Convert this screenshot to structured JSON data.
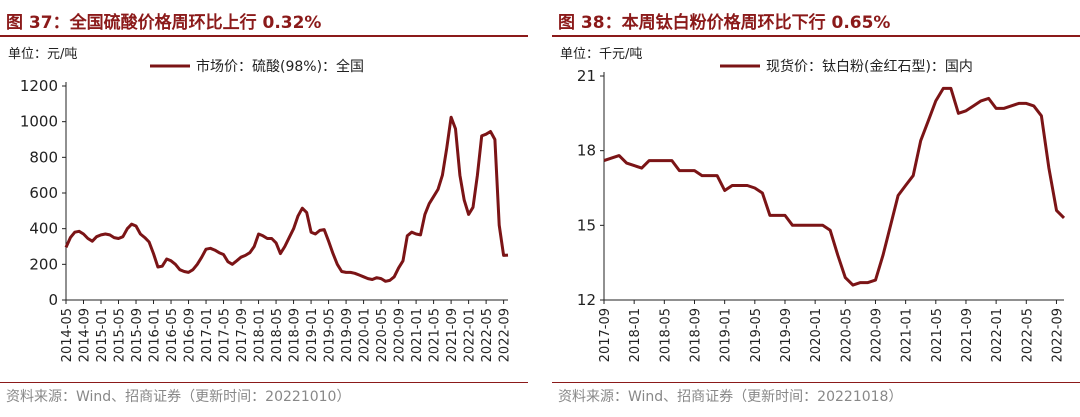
{
  "left": {
    "title": "图 37：全国硫酸价格周环比上行 0.32%",
    "source": "资料来源：Wind、招商证券（更新时间：20221010）"
  },
  "right": {
    "title": "图 38：本周钛白粉价格周环比下行 0.65%",
    "source": "资料来源：Wind、招商证券（更新时间：20221018）"
  },
  "colors": {
    "accent": "#8b1a1a",
    "line": "#7b1416",
    "axis": "#222222"
  },
  "chart_data": [
    {
      "type": "line",
      "title": "",
      "unit_label": "单位：元/吨",
      "xlabel": "",
      "ylabel": "",
      "ylim": [
        0,
        1200
      ],
      "yticks": [
        0,
        200,
        400,
        600,
        800,
        1000,
        1200
      ],
      "xlim": [
        "2014-05",
        "2022-10"
      ],
      "xticks": [
        "2014-05",
        "2014-09",
        "2015-01",
        "2015-05",
        "2015-09",
        "2016-01",
        "2016-05",
        "2016-09",
        "2017-01",
        "2017-05",
        "2017-09",
        "2018-01",
        "2018-05",
        "2018-09",
        "2019-01",
        "2019-05",
        "2019-09",
        "2020-01",
        "2020-05",
        "2020-09",
        "2021-01",
        "2021-05",
        "2021-09",
        "2022-01",
        "2022-05",
        "2022-09"
      ],
      "grid": false,
      "legend": "top",
      "series": [
        {
          "name": "市场价：硫酸(98%)：全国",
          "points": [
            [
              "2014-05",
              295
            ],
            [
              "2014-06",
              350
            ],
            [
              "2014-07",
              380
            ],
            [
              "2014-08",
              385
            ],
            [
              "2014-09",
              370
            ],
            [
              "2014-10",
              345
            ],
            [
              "2014-11",
              330
            ],
            [
              "2014-12",
              355
            ],
            [
              "2015-01",
              365
            ],
            [
              "2015-02",
              370
            ],
            [
              "2015-03",
              365
            ],
            [
              "2015-04",
              350
            ],
            [
              "2015-05",
              345
            ],
            [
              "2015-06",
              355
            ],
            [
              "2015-07",
              400
            ],
            [
              "2015-08",
              425
            ],
            [
              "2015-09",
              415
            ],
            [
              "2015-10",
              370
            ],
            [
              "2015-11",
              350
            ],
            [
              "2015-12",
              325
            ],
            [
              "2016-01",
              260
            ],
            [
              "2016-02",
              185
            ],
            [
              "2016-03",
              190
            ],
            [
              "2016-04",
              230
            ],
            [
              "2016-05",
              220
            ],
            [
              "2016-06",
              200
            ],
            [
              "2016-07",
              170
            ],
            [
              "2016-08",
              160
            ],
            [
              "2016-09",
              155
            ],
            [
              "2016-10",
              170
            ],
            [
              "2016-11",
              200
            ],
            [
              "2016-12",
              240
            ],
            [
              "2017-01",
              285
            ],
            [
              "2017-02",
              290
            ],
            [
              "2017-03",
              280
            ],
            [
              "2017-04",
              265
            ],
            [
              "2017-05",
              255
            ],
            [
              "2017-06",
              215
            ],
            [
              "2017-07",
              200
            ],
            [
              "2017-08",
              220
            ],
            [
              "2017-09",
              240
            ],
            [
              "2017-10",
              250
            ],
            [
              "2017-11",
              265
            ],
            [
              "2017-12",
              300
            ],
            [
              "2018-01",
              370
            ],
            [
              "2018-02",
              360
            ],
            [
              "2018-03",
              345
            ],
            [
              "2018-04",
              345
            ],
            [
              "2018-05",
              320
            ],
            [
              "2018-06",
              260
            ],
            [
              "2018-07",
              300
            ],
            [
              "2018-08",
              350
            ],
            [
              "2018-09",
              400
            ],
            [
              "2018-10",
              470
            ],
            [
              "2018-11",
              515
            ],
            [
              "2018-12",
              490
            ],
            [
              "2019-01",
              380
            ],
            [
              "2019-02",
              370
            ],
            [
              "2019-03",
              390
            ],
            [
              "2019-04",
              395
            ],
            [
              "2019-05",
              330
            ],
            [
              "2019-06",
              260
            ],
            [
              "2019-07",
              200
            ],
            [
              "2019-08",
              160
            ],
            [
              "2019-09",
              155
            ],
            [
              "2019-10",
              155
            ],
            [
              "2019-11",
              150
            ],
            [
              "2019-12",
              140
            ],
            [
              "2020-01",
              130
            ],
            [
              "2020-02",
              120
            ],
            [
              "2020-03",
              115
            ],
            [
              "2020-04",
              125
            ],
            [
              "2020-05",
              120
            ],
            [
              "2020-06",
              105
            ],
            [
              "2020-07",
              110
            ],
            [
              "2020-08",
              130
            ],
            [
              "2020-09",
              180
            ],
            [
              "2020-10",
              220
            ],
            [
              "2020-11",
              360
            ],
            [
              "2020-12",
              380
            ],
            [
              "2021-01",
              370
            ],
            [
              "2021-02",
              365
            ],
            [
              "2021-03",
              480
            ],
            [
              "2021-04",
              540
            ],
            [
              "2021-05",
              580
            ],
            [
              "2021-06",
              620
            ],
            [
              "2021-07",
              700
            ],
            [
              "2021-08",
              850
            ],
            [
              "2021-09",
              1025
            ],
            [
              "2021-10",
              960
            ],
            [
              "2021-11",
              700
            ],
            [
              "2021-12",
              560
            ],
            [
              "2022-01",
              480
            ],
            [
              "2022-02",
              520
            ],
            [
              "2022-03",
              700
            ],
            [
              "2022-04",
              920
            ],
            [
              "2022-05",
              930
            ],
            [
              "2022-06",
              945
            ],
            [
              "2022-07",
              900
            ],
            [
              "2022-08",
              420
            ],
            [
              "2022-09",
              250
            ],
            [
              "2022-10",
              252
            ]
          ]
        }
      ]
    },
    {
      "type": "line",
      "title": "",
      "unit_label": "单位：千元/吨",
      "xlabel": "",
      "ylabel": "",
      "ylim": [
        12,
        21
      ],
      "yticks": [
        12,
        15,
        18,
        21
      ],
      "xlim": [
        "2017-09",
        "2022-10"
      ],
      "xticks": [
        "2017-09",
        "2018-01",
        "2018-05",
        "2018-09",
        "2019-01",
        "2019-05",
        "2019-09",
        "2020-01",
        "2020-05",
        "2020-09",
        "2021-01",
        "2021-05",
        "2021-09",
        "2022-01",
        "2022-05",
        "2022-09"
      ],
      "grid": false,
      "legend": "top",
      "series": [
        {
          "name": "现货价：钛白粉(金红石型)：国内",
          "points": [
            [
              "2017-09",
              17.6
            ],
            [
              "2017-10",
              17.7
            ],
            [
              "2017-11",
              17.8
            ],
            [
              "2017-12",
              17.5
            ],
            [
              "2018-01",
              17.4
            ],
            [
              "2018-02",
              17.3
            ],
            [
              "2018-03",
              17.6
            ],
            [
              "2018-04",
              17.6
            ],
            [
              "2018-05",
              17.6
            ],
            [
              "2018-06",
              17.6
            ],
            [
              "2018-07",
              17.2
            ],
            [
              "2018-08",
              17.2
            ],
            [
              "2018-09",
              17.2
            ],
            [
              "2018-10",
              17.0
            ],
            [
              "2018-11",
              17.0
            ],
            [
              "2018-12",
              17.0
            ],
            [
              "2019-01",
              16.4
            ],
            [
              "2019-02",
              16.6
            ],
            [
              "2019-03",
              16.6
            ],
            [
              "2019-04",
              16.6
            ],
            [
              "2019-05",
              16.5
            ],
            [
              "2019-06",
              16.3
            ],
            [
              "2019-07",
              15.4
            ],
            [
              "2019-08",
              15.4
            ],
            [
              "2019-09",
              15.4
            ],
            [
              "2019-10",
              15.0
            ],
            [
              "2019-11",
              15.0
            ],
            [
              "2019-12",
              15.0
            ],
            [
              "2020-01",
              15.0
            ],
            [
              "2020-02",
              15.0
            ],
            [
              "2020-03",
              14.8
            ],
            [
              "2020-04",
              13.8
            ],
            [
              "2020-05",
              12.9
            ],
            [
              "2020-06",
              12.6
            ],
            [
              "2020-07",
              12.7
            ],
            [
              "2020-08",
              12.7
            ],
            [
              "2020-09",
              12.8
            ],
            [
              "2020-10",
              13.8
            ],
            [
              "2020-11",
              15.0
            ],
            [
              "2020-12",
              16.2
            ],
            [
              "2021-01",
              16.6
            ],
            [
              "2021-02",
              17.0
            ],
            [
              "2021-03",
              18.4
            ],
            [
              "2021-04",
              19.2
            ],
            [
              "2021-05",
              20.0
            ],
            [
              "2021-06",
              20.5
            ],
            [
              "2021-07",
              20.5
            ],
            [
              "2021-08",
              19.5
            ],
            [
              "2021-09",
              19.6
            ],
            [
              "2021-10",
              19.8
            ],
            [
              "2021-11",
              20.0
            ],
            [
              "2021-12",
              20.1
            ],
            [
              "2022-01",
              19.7
            ],
            [
              "2022-02",
              19.7
            ],
            [
              "2022-03",
              19.8
            ],
            [
              "2022-04",
              19.9
            ],
            [
              "2022-05",
              19.9
            ],
            [
              "2022-06",
              19.8
            ],
            [
              "2022-07",
              19.4
            ],
            [
              "2022-08",
              17.3
            ],
            [
              "2022-09",
              15.6
            ],
            [
              "2022-10",
              15.3
            ]
          ]
        }
      ]
    }
  ]
}
